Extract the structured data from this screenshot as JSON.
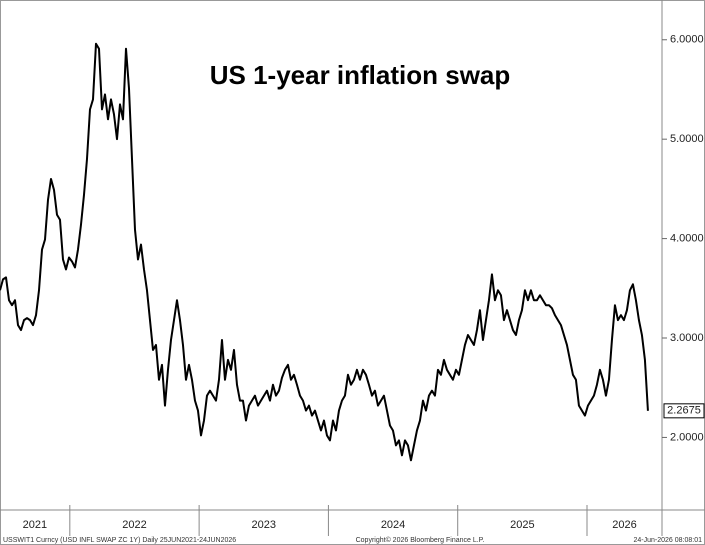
{
  "chart_data": {
    "type": "line",
    "title": "US 1-year inflation swap",
    "footer": {
      "source": "USSWIT1 Curncy (USD INFL SWAP ZC 1Y) Daily 25JUN2021-24JUN2026",
      "copyright": "Copyright© 2026 Bloomberg Finance L.P.",
      "timestamp": "24-Jun-2026 08:08:01"
    },
    "xlim": [
      2021.46,
      2026.58
    ],
    "xticks": [
      {
        "value": 2021,
        "label": "2021"
      },
      {
        "value": 2022,
        "label": "2022"
      },
      {
        "value": 2023,
        "label": "2023"
      },
      {
        "value": 2024,
        "label": "2024"
      },
      {
        "value": 2025,
        "label": "2025"
      },
      {
        "value": 2026,
        "label": "2026"
      }
    ],
    "ylim": [
      1.27,
      6.4
    ],
    "yticks": [
      {
        "value": 2,
        "label": "2.0000"
      },
      {
        "value": 3,
        "label": "3.0000"
      },
      {
        "value": 4,
        "label": "4.0000"
      },
      {
        "value": 5,
        "label": "5.0000"
      },
      {
        "value": 6,
        "label": "6.0000"
      }
    ],
    "axis_side": "right",
    "grid": false,
    "series": [
      {
        "name": "USSWIT1 Curncy",
        "color": "#000000",
        "x": [
          2021.46,
          2021.4832,
          2021.5064,
          2021.5296,
          2021.5528,
          2021.576,
          2021.5992,
          2021.6224,
          2021.6456,
          2021.6688,
          2021.692,
          2021.7152,
          2021.7384,
          2021.7616,
          2021.7848,
          2021.808,
          2021.8312,
          2021.8544,
          2021.8776,
          2021.9008,
          2021.924,
          2021.9472,
          2021.9704,
          2021.9936,
          2022.0168,
          2022.04,
          2022.0632,
          2022.0864,
          2022.1096,
          2022.1328,
          2022.156,
          2022.1792,
          2022.2024,
          2022.2256,
          2022.2488,
          2022.272,
          2022.2952,
          2022.3184,
          2022.3416,
          2022.3648,
          2022.388,
          2022.4112,
          2022.4344,
          2022.4576,
          2022.4808,
          2022.504,
          2022.5272,
          2022.5504,
          2022.5736,
          2022.5968,
          2022.62,
          2022.6432,
          2022.6664,
          2022.6896,
          2022.7128,
          2022.736,
          2022.7592,
          2022.7824,
          2022.8056,
          2022.8288,
          2022.852,
          2022.8752,
          2022.8984,
          2022.9216,
          2022.9448,
          2022.968,
          2022.9912,
          2023.0144,
          2023.0376,
          2023.0608,
          2023.084,
          2023.1072,
          2023.1304,
          2023.1536,
          2023.1768,
          2023.2,
          2023.2232,
          2023.2464,
          2023.2696,
          2023.2928,
          2023.316,
          2023.3392,
          2023.3624,
          2023.3856,
          2023.4088,
          2023.432,
          2023.4552,
          2023.4784,
          2023.5016,
          2023.5248,
          2023.548,
          2023.5712,
          2023.5944,
          2023.6176,
          2023.6408,
          2023.664,
          2023.6872,
          2023.7104,
          2023.7336,
          2023.7568,
          2023.78,
          2023.8032,
          2023.8264,
          2023.8496,
          2023.8728,
          2023.896,
          2023.9192,
          2023.9424,
          2023.9656,
          2023.9888,
          2024.012,
          2024.0352,
          2024.0584,
          2024.0816,
          2024.1048,
          2024.128,
          2024.1512,
          2024.1744,
          2024.1976,
          2024.2208,
          2024.244,
          2024.2672,
          2024.2904,
          2024.3136,
          2024.3368,
          2024.36,
          2024.3832,
          2024.4064,
          2024.4296,
          2024.4528,
          2024.476,
          2024.4992,
          2024.5224,
          2024.5456,
          2024.5688,
          2024.592,
          2024.6152,
          2024.6384,
          2024.6616,
          2024.6848,
          2024.708,
          2024.7312,
          2024.7544,
          2024.7776,
          2024.8008,
          2024.824,
          2024.8472,
          2024.8704,
          2024.8936,
          2024.9168,
          2024.94,
          2024.9632,
          2024.9864,
          2025.0096,
          2025.0328,
          2025.056,
          2025.0792,
          2025.1024,
          2025.1256,
          2025.1488,
          2025.172,
          2025.1952,
          2025.2184,
          2025.2416,
          2025.2648,
          2025.288,
          2025.3112,
          2025.3344,
          2025.3576,
          2025.3808,
          2025.404,
          2025.4272,
          2025.4504,
          2025.4736,
          2025.4968,
          2025.52,
          2025.5432,
          2025.5664,
          2025.5896,
          2025.6128,
          2025.636,
          2025.6592,
          2025.6824,
          2025.7056,
          2025.7288,
          2025.752,
          2025.7752,
          2025.7984,
          2025.8216,
          2025.8448,
          2025.868,
          2025.8912,
          2025.9144,
          2025.9376,
          2025.9608,
          2025.984,
          2026.0072,
          2026.0304,
          2026.0536,
          2026.0768,
          2026.1,
          2026.1232,
          2026.1464,
          2026.1696,
          2026.1928,
          2026.216,
          2026.2392,
          2026.2624,
          2026.2856,
          2026.3088,
          2026.332,
          2026.3552,
          2026.3784,
          2026.4016,
          2026.4248,
          2026.448,
          2026.4712
        ],
        "values": [
          3.48,
          3.59,
          3.61,
          3.38,
          3.33,
          3.38,
          3.13,
          3.08,
          3.18,
          3.2,
          3.18,
          3.13,
          3.23,
          3.48,
          3.89,
          3.99,
          4.39,
          4.6,
          4.49,
          4.24,
          4.19,
          3.79,
          3.69,
          3.81,
          3.77,
          3.71,
          3.89,
          4.14,
          4.44,
          4.8,
          5.3,
          5.4,
          5.96,
          5.91,
          5.3,
          5.45,
          5.2,
          5.4,
          5.25,
          5.0,
          5.35,
          5.2,
          5.91,
          5.51,
          4.8,
          4.09,
          3.79,
          3.94,
          3.69,
          3.48,
          3.18,
          2.88,
          2.93,
          2.58,
          2.73,
          2.32,
          2.68,
          2.98,
          3.18,
          3.38,
          3.18,
          2.93,
          2.58,
          2.73,
          2.58,
          2.37,
          2.27,
          2.02,
          2.17,
          2.42,
          2.47,
          2.42,
          2.37,
          2.58,
          2.98,
          2.58,
          2.78,
          2.68,
          2.88,
          2.53,
          2.37,
          2.37,
          2.17,
          2.32,
          2.37,
          2.42,
          2.32,
          2.37,
          2.42,
          2.47,
          2.37,
          2.53,
          2.42,
          2.47,
          2.6,
          2.68,
          2.73,
          2.58,
          2.63,
          2.53,
          2.42,
          2.37,
          2.27,
          2.32,
          2.22,
          2.27,
          2.17,
          2.07,
          2.17,
          2.02,
          1.97,
          2.17,
          2.07,
          2.27,
          2.37,
          2.42,
          2.63,
          2.53,
          2.58,
          2.68,
          2.58,
          2.68,
          2.63,
          2.53,
          2.42,
          2.47,
          2.32,
          2.37,
          2.42,
          2.27,
          2.12,
          2.07,
          1.92,
          1.97,
          1.82,
          1.97,
          1.92,
          1.77,
          1.92,
          2.07,
          2.17,
          2.37,
          2.27,
          2.42,
          2.47,
          2.42,
          2.68,
          2.63,
          2.78,
          2.68,
          2.63,
          2.58,
          2.68,
          2.63,
          2.78,
          2.93,
          3.03,
          2.98,
          2.93,
          3.08,
          3.28,
          2.98,
          3.18,
          3.38,
          3.64,
          3.38,
          3.48,
          3.43,
          3.18,
          3.28,
          3.18,
          3.08,
          3.03,
          3.18,
          3.28,
          3.48,
          3.38,
          3.48,
          3.38,
          3.38,
          3.43,
          3.38,
          3.33,
          3.33,
          3.3,
          3.23,
          3.18,
          3.13,
          3.03,
          2.93,
          2.78,
          2.63,
          2.58,
          2.32,
          2.27,
          2.22,
          2.32,
          2.37,
          2.42,
          2.53,
          2.68,
          2.58,
          2.42,
          2.58,
          2.98,
          3.33,
          3.18,
          3.23,
          3.18,
          3.28,
          3.48,
          3.54,
          3.38,
          3.18,
          3.03,
          2.78,
          2.2675
        ]
      }
    ]
  }
}
